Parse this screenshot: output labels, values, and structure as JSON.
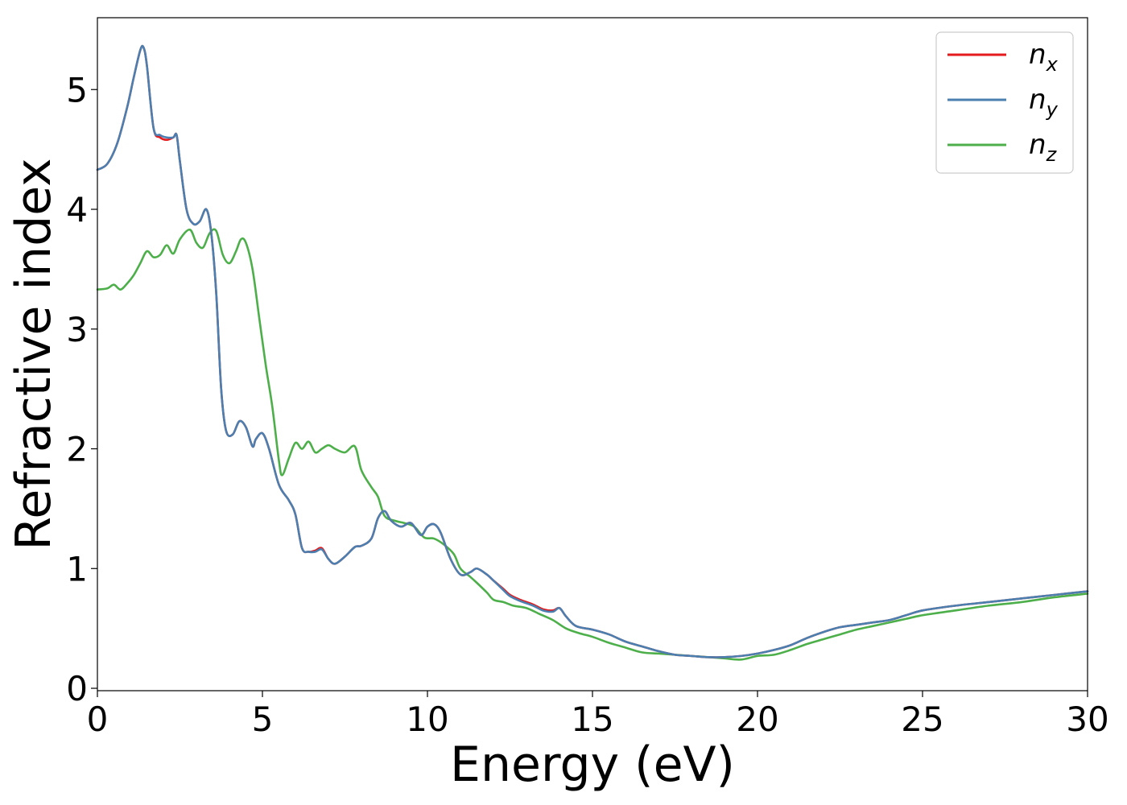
{
  "chart_data": {
    "type": "line",
    "title": "",
    "xlabel": "Energy (eV)",
    "ylabel": "Refractive index",
    "xlim": [
      0,
      30
    ],
    "ylim": [
      -0.02,
      5.6
    ],
    "xticks": [
      0,
      5,
      10,
      15,
      20,
      25,
      30
    ],
    "yticks": [
      0,
      1,
      2,
      3,
      4,
      5
    ],
    "grid": false,
    "legend_position": "top-right",
    "series": [
      {
        "name": "n",
        "subscript": "x",
        "color": "#e41a1c",
        "x": [
          0,
          0.3,
          0.6,
          0.9,
          1.1,
          1.3,
          1.4,
          1.5,
          1.7,
          1.9,
          2.1,
          2.3,
          2.4,
          2.5,
          2.7,
          2.9,
          3.1,
          3.3,
          3.45,
          3.6,
          3.75,
          3.9,
          4.1,
          4.3,
          4.5,
          4.7,
          4.8,
          5.0,
          5.2,
          5.5,
          5.8,
          6.0,
          6.2,
          6.4,
          6.6,
          6.8,
          7.0,
          7.2,
          7.5,
          7.8,
          8.0,
          8.3,
          8.5,
          8.7,
          8.9,
          9.2,
          9.5,
          9.8,
          10.0,
          10.2,
          10.4,
          10.7,
          11.0,
          11.3,
          11.5,
          11.8,
          12.0,
          12.3,
          12.5,
          12.8,
          13.2,
          13.5,
          13.8,
          14.0,
          14.2,
          14.5,
          15.0,
          15.5,
          16.0,
          16.5,
          17.0,
          17.5,
          18.0,
          18.5,
          19.0,
          19.5,
          20.0,
          20.5,
          21.0,
          21.5,
          22.0,
          22.5,
          23.0,
          23.5,
          24.0,
          24.5,
          25.0,
          26.0,
          27.0,
          28.0,
          29.0,
          30.0
        ],
        "y": [
          4.33,
          4.38,
          4.55,
          4.85,
          5.1,
          5.33,
          5.35,
          5.2,
          4.68,
          4.6,
          4.58,
          4.6,
          4.62,
          4.4,
          4.0,
          3.88,
          3.9,
          4.0,
          3.8,
          3.3,
          2.5,
          2.15,
          2.12,
          2.23,
          2.18,
          2.02,
          2.08,
          2.13,
          2.0,
          1.7,
          1.57,
          1.45,
          1.17,
          1.14,
          1.15,
          1.17,
          1.08,
          1.04,
          1.1,
          1.18,
          1.19,
          1.25,
          1.42,
          1.48,
          1.4,
          1.35,
          1.38,
          1.28,
          1.35,
          1.37,
          1.3,
          1.08,
          0.95,
          0.97,
          1.0,
          0.95,
          0.9,
          0.83,
          0.78,
          0.74,
          0.7,
          0.66,
          0.65,
          0.67,
          0.6,
          0.52,
          0.49,
          0.45,
          0.39,
          0.35,
          0.31,
          0.28,
          0.27,
          0.26,
          0.26,
          0.27,
          0.29,
          0.32,
          0.36,
          0.42,
          0.47,
          0.51,
          0.53,
          0.55,
          0.57,
          0.61,
          0.65,
          0.69,
          0.72,
          0.75,
          0.78,
          0.81
        ]
      },
      {
        "name": "n",
        "subscript": "y",
        "color": "#4a7fb0",
        "x": [
          0,
          0.3,
          0.6,
          0.9,
          1.1,
          1.3,
          1.4,
          1.5,
          1.7,
          1.9,
          2.1,
          2.3,
          2.4,
          2.5,
          2.7,
          2.9,
          3.1,
          3.3,
          3.45,
          3.6,
          3.75,
          3.9,
          4.1,
          4.3,
          4.5,
          4.7,
          4.8,
          5.0,
          5.2,
          5.5,
          5.8,
          6.0,
          6.2,
          6.4,
          6.6,
          6.8,
          7.0,
          7.2,
          7.5,
          7.8,
          8.0,
          8.3,
          8.5,
          8.7,
          8.9,
          9.2,
          9.5,
          9.8,
          10.0,
          10.2,
          10.4,
          10.7,
          11.0,
          11.3,
          11.5,
          11.8,
          12.0,
          12.3,
          12.5,
          12.8,
          13.2,
          13.5,
          13.8,
          14.0,
          14.2,
          14.5,
          15.0,
          15.5,
          16.0,
          16.5,
          17.0,
          17.5,
          18.0,
          18.5,
          19.0,
          19.5,
          20.0,
          20.5,
          21.0,
          21.5,
          22.0,
          22.5,
          23.0,
          23.5,
          24.0,
          24.5,
          25.0,
          26.0,
          27.0,
          28.0,
          29.0,
          30.0
        ],
        "y": [
          4.33,
          4.38,
          4.55,
          4.85,
          5.1,
          5.33,
          5.35,
          5.2,
          4.68,
          4.62,
          4.6,
          4.6,
          4.62,
          4.4,
          4.0,
          3.88,
          3.9,
          4.0,
          3.8,
          3.3,
          2.5,
          2.15,
          2.12,
          2.23,
          2.18,
          2.02,
          2.08,
          2.13,
          2.0,
          1.7,
          1.57,
          1.45,
          1.17,
          1.14,
          1.14,
          1.16,
          1.08,
          1.04,
          1.1,
          1.18,
          1.19,
          1.25,
          1.42,
          1.48,
          1.4,
          1.35,
          1.38,
          1.28,
          1.35,
          1.37,
          1.3,
          1.08,
          0.95,
          0.97,
          1.0,
          0.95,
          0.9,
          0.82,
          0.77,
          0.73,
          0.69,
          0.65,
          0.64,
          0.67,
          0.6,
          0.52,
          0.49,
          0.45,
          0.39,
          0.35,
          0.31,
          0.28,
          0.27,
          0.26,
          0.26,
          0.27,
          0.29,
          0.32,
          0.36,
          0.42,
          0.47,
          0.51,
          0.53,
          0.55,
          0.57,
          0.61,
          0.65,
          0.69,
          0.72,
          0.75,
          0.78,
          0.81
        ]
      },
      {
        "name": "n",
        "subscript": "z",
        "color": "#4daf4a",
        "x": [
          0,
          0.3,
          0.5,
          0.7,
          0.9,
          1.1,
          1.3,
          1.5,
          1.7,
          1.9,
          2.1,
          2.3,
          2.5,
          2.8,
          3.0,
          3.2,
          3.4,
          3.6,
          3.8,
          4.0,
          4.2,
          4.35,
          4.5,
          4.7,
          4.9,
          5.1,
          5.3,
          5.5,
          5.6,
          5.8,
          6.0,
          6.2,
          6.4,
          6.6,
          6.8,
          7.0,
          7.2,
          7.5,
          7.8,
          8.0,
          8.3,
          8.5,
          8.7,
          9.0,
          9.3,
          9.6,
          9.9,
          10.2,
          10.5,
          10.8,
          11.0,
          11.3,
          11.5,
          11.8,
          12.0,
          12.3,
          12.6,
          13.0,
          13.4,
          13.8,
          14.2,
          14.6,
          15.0,
          15.5,
          16.0,
          16.5,
          17.0,
          17.5,
          18.0,
          18.5,
          19.0,
          19.5,
          20.0,
          20.5,
          21.0,
          21.5,
          22.0,
          22.5,
          23.0,
          23.5,
          24.0,
          24.5,
          25.0,
          26.0,
          27.0,
          28.0,
          29.0,
          30.0
        ],
        "y": [
          3.33,
          3.34,
          3.37,
          3.33,
          3.38,
          3.45,
          3.55,
          3.65,
          3.6,
          3.62,
          3.7,
          3.63,
          3.75,
          3.83,
          3.72,
          3.68,
          3.8,
          3.82,
          3.62,
          3.55,
          3.65,
          3.75,
          3.72,
          3.5,
          3.1,
          2.7,
          2.35,
          1.9,
          1.78,
          1.92,
          2.05,
          2.0,
          2.06,
          1.97,
          2.0,
          2.03,
          2.0,
          1.97,
          2.02,
          1.82,
          1.68,
          1.6,
          1.44,
          1.4,
          1.38,
          1.35,
          1.26,
          1.25,
          1.2,
          1.12,
          1.0,
          0.93,
          0.88,
          0.8,
          0.74,
          0.72,
          0.69,
          0.67,
          0.62,
          0.57,
          0.5,
          0.46,
          0.43,
          0.38,
          0.34,
          0.3,
          0.29,
          0.28,
          0.27,
          0.26,
          0.25,
          0.24,
          0.27,
          0.28,
          0.32,
          0.37,
          0.41,
          0.45,
          0.49,
          0.52,
          0.55,
          0.58,
          0.61,
          0.65,
          0.69,
          0.72,
          0.76,
          0.79
        ]
      }
    ]
  }
}
